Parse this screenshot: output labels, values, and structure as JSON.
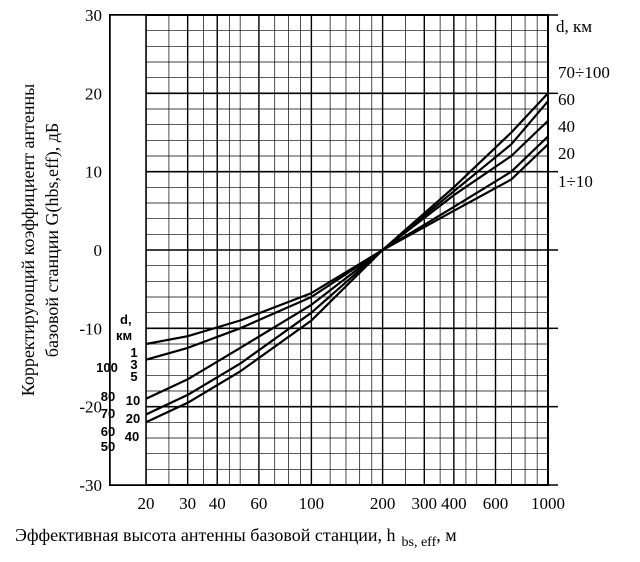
{
  "chart_data": {
    "type": "line",
    "title": "",
    "xlabel_main": "Эффективная высота антенны базовой станции, h",
    "xlabel_sub": "bs, eff",
    "xlabel_unit": ", м",
    "ylabel_line1": "Корректирующий коэффициент антенны",
    "ylabel_line2": "базовой станции G(hbs,eff), дБ",
    "x_scale": "log",
    "xlim": [
      20,
      1000
    ],
    "ylim": [
      -30,
      30
    ],
    "x_tick_labels": [
      "20",
      "30",
      "40",
      "60",
      "100",
      "200",
      "300",
      "400",
      "600",
      "1000"
    ],
    "y_tick_labels": [
      "30",
      "20",
      "10",
      "0",
      "-10",
      "-20",
      "-30"
    ],
    "grid": true,
    "right_header": "d, км",
    "left_header_line1": "d,",
    "left_header_line2": "км",
    "series": [
      {
        "name": "70÷100",
        "left_name": "100",
        "x": [
          20,
          30,
          50,
          100,
          200,
          400,
          700,
          1000
        ],
        "y": [
          -19,
          -16.5,
          -12.5,
          -7,
          0,
          8,
          15,
          20
        ]
      },
      {
        "name": "60",
        "left_name": "70",
        "x": [
          20,
          30,
          50,
          100,
          200,
          400,
          700,
          1000
        ],
        "y": [
          -21,
          -18.5,
          -14.5,
          -8,
          0,
          7.5,
          13.5,
          19
        ]
      },
      {
        "name": "40",
        "left_name": "40",
        "x": [
          20,
          30,
          50,
          100,
          200,
          400,
          700,
          1000
        ],
        "y": [
          -22,
          -19.5,
          -15.5,
          -9,
          0,
          7,
          12,
          16.5
        ]
      },
      {
        "name": "20",
        "left_name": "20",
        "x": [
          20,
          30,
          50,
          100,
          200,
          400,
          700,
          1000
        ],
        "y": [
          -14,
          -12.5,
          -10,
          -6,
          0,
          5.5,
          10,
          14.5
        ]
      },
      {
        "name": "1÷10",
        "left_name": "1",
        "x": [
          20,
          30,
          50,
          100,
          200,
          400,
          700,
          1000
        ],
        "y": [
          -12,
          -11,
          -9,
          -5.5,
          0,
          5,
          9,
          13.5
        ]
      }
    ],
    "left_labels": [
      "1",
      "3",
      "5",
      "10",
      "20",
      "40",
      "50",
      "60",
      "70",
      "80",
      "100"
    ]
  }
}
